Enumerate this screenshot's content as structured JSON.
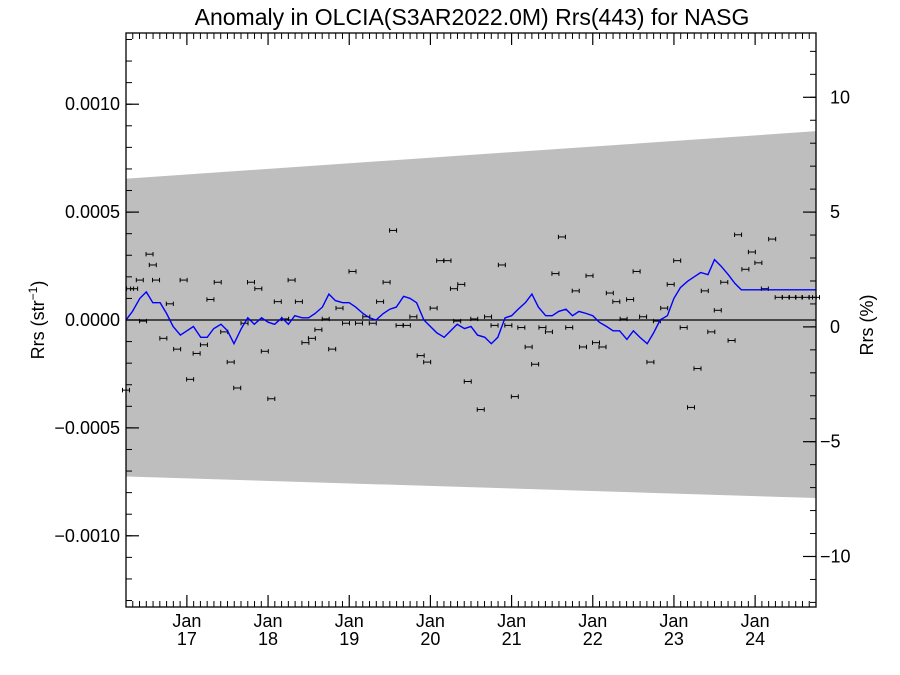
{
  "chart_data": {
    "type": "scatter",
    "title": "Anomaly in OLCIA(S3AR2022.0M) Rrs(443) for NASG",
    "ylabel": "Rrs (str",
    "ylabel_sup": "−1",
    "ylabel_close": ")",
    "y2label": "Rrs (%)",
    "x_range": [
      2016.25,
      2024.75
    ],
    "ylim": [
      -0.00133,
      0.00133
    ],
    "y2lim": [
      -12.2,
      12.8
    ],
    "grid": false,
    "zero_line": true,
    "y_ticks": [
      {
        "value": 0.001,
        "label": "0.0010"
      },
      {
        "value": 0.0005,
        "label": "0.0005"
      },
      {
        "value": 0.0,
        "label": "0.0000"
      },
      {
        "value": -0.0005,
        "label": "−0.0005"
      },
      {
        "value": -0.001,
        "label": "−0.0010"
      }
    ],
    "y2_ticks": [
      {
        "value": 10,
        "label": "10"
      },
      {
        "value": 5,
        "label": "5"
      },
      {
        "value": 0,
        "label": "0"
      },
      {
        "value": -5,
        "label": "−5"
      },
      {
        "value": -10,
        "label": "−10"
      }
    ],
    "x_ticks": [
      {
        "value": 2017.0,
        "month": "Jan",
        "year": "17"
      },
      {
        "value": 2018.0,
        "month": "Jan",
        "year": "18"
      },
      {
        "value": 2019.0,
        "month": "Jan",
        "year": "19"
      },
      {
        "value": 2020.0,
        "month": "Jan",
        "year": "20"
      },
      {
        "value": 2021.0,
        "month": "Jan",
        "year": "21"
      },
      {
        "value": 2022.0,
        "month": "Jan",
        "year": "22"
      },
      {
        "value": 2023.0,
        "month": "Jan",
        "year": "23"
      },
      {
        "value": 2024.0,
        "month": "Jan",
        "year": "24"
      }
    ],
    "uncertainty_band": {
      "x": [
        2016.25,
        2024.75
      ],
      "upper": [
        0.000655,
        0.000875
      ],
      "lower": [
        -0.000725,
        -0.000825
      ]
    },
    "series": [
      {
        "type": "errorbar-points",
        "x": [
          2016.25,
          2016.3,
          2016.35,
          2016.42,
          2016.46,
          2016.54,
          2016.58,
          2016.62,
          2016.71,
          2016.79,
          2016.88,
          2016.96,
          2017.04,
          2017.12,
          2017.21,
          2017.29,
          2017.38,
          2017.46,
          2017.54,
          2017.62,
          2017.71,
          2017.79,
          2017.88,
          2017.96,
          2018.04,
          2018.12,
          2018.21,
          2018.29,
          2018.38,
          2018.46,
          2018.54,
          2018.62,
          2018.71,
          2018.79,
          2018.88,
          2018.96,
          2019.04,
          2019.12,
          2019.21,
          2019.29,
          2019.38,
          2019.46,
          2019.54,
          2019.62,
          2019.71,
          2019.79,
          2019.88,
          2019.96,
          2020.04,
          2020.12,
          2020.21,
          2020.29,
          2020.33,
          2020.38,
          2020.46,
          2020.54,
          2020.62,
          2020.71,
          2020.79,
          2020.88,
          2020.96,
          2021.04,
          2021.12,
          2021.21,
          2021.29,
          2021.38,
          2021.46,
          2021.54,
          2021.62,
          2021.71,
          2021.79,
          2021.88,
          2021.96,
          2022.04,
          2022.12,
          2022.21,
          2022.29,
          2022.38,
          2022.46,
          2022.54,
          2022.62,
          2022.71,
          2022.79,
          2022.88,
          2022.96,
          2023.04,
          2023.12,
          2023.21,
          2023.29,
          2023.38,
          2023.46,
          2023.54,
          2023.62,
          2023.71,
          2023.79,
          2023.88,
          2023.96,
          2024.04,
          2024.12,
          2024.21,
          2024.29,
          2024.38,
          2024.46,
          2024.54,
          2024.62,
          2024.71,
          2024.75
        ],
        "y": [
          -0.000325,
          0.000145,
          0.000145,
          0.000185,
          -5e-06,
          0.000305,
          0.000255,
          0.000185,
          -8.5e-05,
          7.5e-05,
          -0.000135,
          0.000185,
          -0.000275,
          -0.000155,
          -0.000115,
          9.5e-05,
          0.000175,
          -5.5e-05,
          -0.000195,
          -0.000315,
          -1.5e-05,
          0.000175,
          0.000145,
          -0.000145,
          -0.000365,
          8.5e-05,
          5e-06,
          0.000185,
          8.5e-05,
          -0.000105,
          -8.5e-05,
          -4.5e-05,
          5e-06,
          -0.000135,
          5.5e-05,
          -1.5e-05,
          0.000225,
          -1.5e-05,
          1.5e-05,
          -1.5e-05,
          8.5e-05,
          0.000175,
          0.000415,
          -2.5e-05,
          -2.5e-05,
          1.5e-05,
          -0.000165,
          -0.000195,
          5.5e-05,
          0.000275,
          0.000275,
          0.000145,
          -5e-06,
          0.000165,
          -0.000285,
          5e-06,
          -0.000415,
          1.5e-05,
          -2.5e-05,
          0.000255,
          -2.5e-05,
          -0.000355,
          -3.5e-05,
          -0.000125,
          -0.000205,
          -3.5e-05,
          -5.5e-05,
          0.000215,
          0.000385,
          -3.5e-05,
          0.000135,
          -0.000125,
          0.000205,
          -0.000105,
          -0.000125,
          0.000125,
          8.5e-05,
          5e-06,
          9.5e-05,
          0.000225,
          1.5e-05,
          -0.000195,
          -5e-06,
          5.5e-05,
          0.000165,
          0.000275,
          -3.5e-05,
          -0.000405,
          -0.000225,
          0.000135,
          -5.5e-05,
          4.5e-05,
          0.000175,
          -9.5e-05,
          0.000395,
          0.000235,
          0.000315,
          0.000265,
          0.000145,
          0.000375,
          0.000105,
          0.000105,
          0.000105,
          0.000105,
          0.000105,
          0.000105,
          0.000105
        ]
      },
      {
        "type": "line",
        "name": "",
        "color": "#0000ff",
        "x": [
          2016.25,
          2016.33,
          2016.42,
          2016.5,
          2016.58,
          2016.67,
          2016.75,
          2016.83,
          2016.92,
          2017.0,
          2017.08,
          2017.17,
          2017.25,
          2017.33,
          2017.42,
          2017.5,
          2017.58,
          2017.67,
          2017.75,
          2017.83,
          2017.92,
          2018.0,
          2018.08,
          2018.17,
          2018.25,
          2018.33,
          2018.42,
          2018.5,
          2018.58,
          2018.67,
          2018.75,
          2018.83,
          2018.92,
          2019.0,
          2019.08,
          2019.17,
          2019.25,
          2019.33,
          2019.42,
          2019.5,
          2019.58,
          2019.67,
          2019.75,
          2019.83,
          2019.92,
          2020.0,
          2020.08,
          2020.17,
          2020.25,
          2020.33,
          2020.42,
          2020.5,
          2020.58,
          2020.67,
          2020.75,
          2020.83,
          2020.92,
          2021.0,
          2021.08,
          2021.17,
          2021.25,
          2021.33,
          2021.42,
          2021.5,
          2021.58,
          2021.67,
          2021.75,
          2021.83,
          2021.92,
          2022.0,
          2022.08,
          2022.17,
          2022.25,
          2022.33,
          2022.42,
          2022.5,
          2022.58,
          2022.67,
          2022.75,
          2022.83,
          2022.92,
          2023.0,
          2023.08,
          2023.17,
          2023.25,
          2023.33,
          2023.42,
          2023.5,
          2023.58,
          2023.67,
          2023.75,
          2023.83,
          2023.92,
          2024.0,
          2024.08,
          2024.17,
          2024.25,
          2024.33,
          2024.42,
          2024.5,
          2024.58,
          2024.67,
          2024.75
        ],
        "y": [
          0.0,
          4e-05,
          0.0001,
          0.00013,
          8e-05,
          8e-05,
          3e-05,
          -3e-05,
          -7e-05,
          -5e-05,
          -3e-05,
          -8e-05,
          -8e-05,
          -4e-05,
          -2e-05,
          -5e-05,
          -0.00011,
          -4e-05,
          1e-05,
          -2e-05,
          1e-05,
          -1e-05,
          -2e-05,
          1e-05,
          -2e-05,
          2e-05,
          1e-05,
          1e-05,
          3e-05,
          6e-05,
          0.00012,
          9e-05,
          8e-05,
          8e-05,
          6e-05,
          3e-05,
          1e-05,
          0.0,
          3e-05,
          5e-05,
          6e-05,
          0.00011,
          0.0001,
          8e-05,
          0.0,
          -3e-05,
          -6e-05,
          -8e-05,
          -5e-05,
          -2e-05,
          -4e-05,
          -3e-05,
          -7e-05,
          -8e-05,
          -0.00011,
          -8e-05,
          1e-05,
          2e-05,
          5e-05,
          8e-05,
          0.00012,
          6e-05,
          2e-05,
          2e-05,
          4e-05,
          5e-05,
          2e-05,
          4e-05,
          3e-05,
          2e-05,
          -1e-05,
          -3e-05,
          -5e-05,
          -5e-05,
          -9e-05,
          -5e-05,
          -8e-05,
          -0.00011,
          -6e-05,
          0.0,
          2e-05,
          0.0001,
          0.00015,
          0.00018,
          0.0002,
          0.00022,
          0.00021,
          0.00028,
          0.00025,
          0.00021,
          0.00017,
          0.00014,
          0.00014,
          0.00014,
          0.00014,
          0.00014,
          0.00014,
          0.00014,
          0.00014,
          0.00014,
          0.00014,
          0.00014,
          0.00014
        ]
      }
    ]
  }
}
